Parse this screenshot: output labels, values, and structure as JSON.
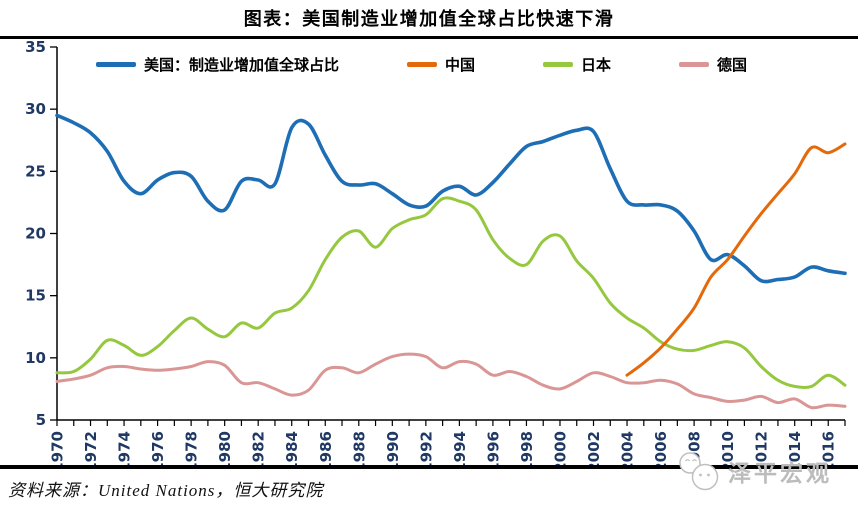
{
  "page": {
    "title": "图表：美国制造业增加值全球占比快速下滑"
  },
  "source_note": "资料来源：United Nations，恒大研究院",
  "watermark": {
    "label": "泽平宏观",
    "logo_icon": "two-chat-faces-icon"
  },
  "chart_data": {
    "type": "line",
    "title": "图表：美国制造业增加值全球占比快速下滑",
    "xlabel": "",
    "ylabel": "",
    "ylim": [
      5,
      35
    ],
    "xlim": [
      1970,
      2017
    ],
    "yticks": [
      5,
      10,
      15,
      20,
      25,
      30,
      35
    ],
    "xtick_labels": [
      1970,
      1972,
      1974,
      1976,
      1978,
      1980,
      1982,
      1984,
      1986,
      1988,
      1990,
      1992,
      1994,
      1996,
      1998,
      2000,
      2002,
      2004,
      2006,
      2008,
      2010,
      2012,
      2014,
      2016
    ],
    "xtick_minor_step": 1,
    "grid": false,
    "legend_position": "top-left",
    "axis_color": "#000000",
    "axis_label_color": "#1F3864",
    "unit": "percent-share",
    "series": [
      {
        "name": "美国：制造业增加值全球占比",
        "color": "#1E6EB5",
        "z": 3,
        "year_start": 1970,
        "values": [
          29.5,
          28.9,
          28.1,
          26.6,
          24.2,
          23.2,
          24.3,
          24.9,
          24.6,
          22.6,
          21.9,
          24.2,
          24.3,
          24.0,
          28.5,
          28.8,
          26.3,
          24.2,
          23.9,
          24.0,
          23.2,
          22.3,
          22.2,
          23.4,
          23.8,
          23.1,
          24.1,
          25.6,
          27.0,
          27.4,
          27.9,
          28.3,
          28.2,
          25.2,
          22.6,
          22.3,
          22.3,
          21.8,
          20.2,
          17.9,
          18.3,
          17.4,
          16.2,
          16.3,
          16.5,
          17.3,
          17.0,
          16.8
        ]
      },
      {
        "name": "中国",
        "color": "#E3690B",
        "z": 4,
        "year_start": 2004,
        "values": [
          8.6,
          9.6,
          10.8,
          12.3,
          14.0,
          16.5,
          17.9,
          19.8,
          21.6,
          23.2,
          24.8,
          26.9,
          26.5,
          27.2
        ]
      },
      {
        "name": "日本",
        "color": "#95C83E",
        "z": 2,
        "year_start": 1970,
        "values": [
          8.8,
          8.9,
          9.9,
          11.4,
          11.0,
          10.2,
          10.9,
          12.2,
          13.2,
          12.3,
          11.7,
          12.8,
          12.4,
          13.6,
          14.0,
          15.4,
          17.9,
          19.7,
          20.2,
          18.9,
          20.4,
          21.1,
          21.5,
          22.8,
          22.6,
          21.9,
          19.5,
          18.0,
          17.5,
          19.4,
          19.8,
          17.8,
          16.4,
          14.4,
          13.2,
          12.4,
          11.3,
          10.7,
          10.6,
          11.0,
          11.3,
          10.8,
          9.3,
          8.2,
          7.7,
          7.7,
          8.6,
          7.8
        ]
      },
      {
        "name": "德国",
        "color": "#D99694",
        "z": 1,
        "year_start": 1970,
        "values": [
          8.1,
          8.3,
          8.6,
          9.2,
          9.3,
          9.1,
          9.0,
          9.1,
          9.3,
          9.7,
          9.4,
          8.0,
          8.0,
          7.5,
          7.0,
          7.4,
          9.0,
          9.2,
          8.8,
          9.5,
          10.1,
          10.3,
          10.1,
          9.2,
          9.7,
          9.5,
          8.6,
          8.9,
          8.5,
          7.8,
          7.5,
          8.1,
          8.8,
          8.5,
          8.0,
          8.0,
          8.2,
          7.9,
          7.1,
          6.8,
          6.5,
          6.6,
          6.9,
          6.4,
          6.7,
          6.0,
          6.2,
          6.1
        ]
      }
    ]
  }
}
